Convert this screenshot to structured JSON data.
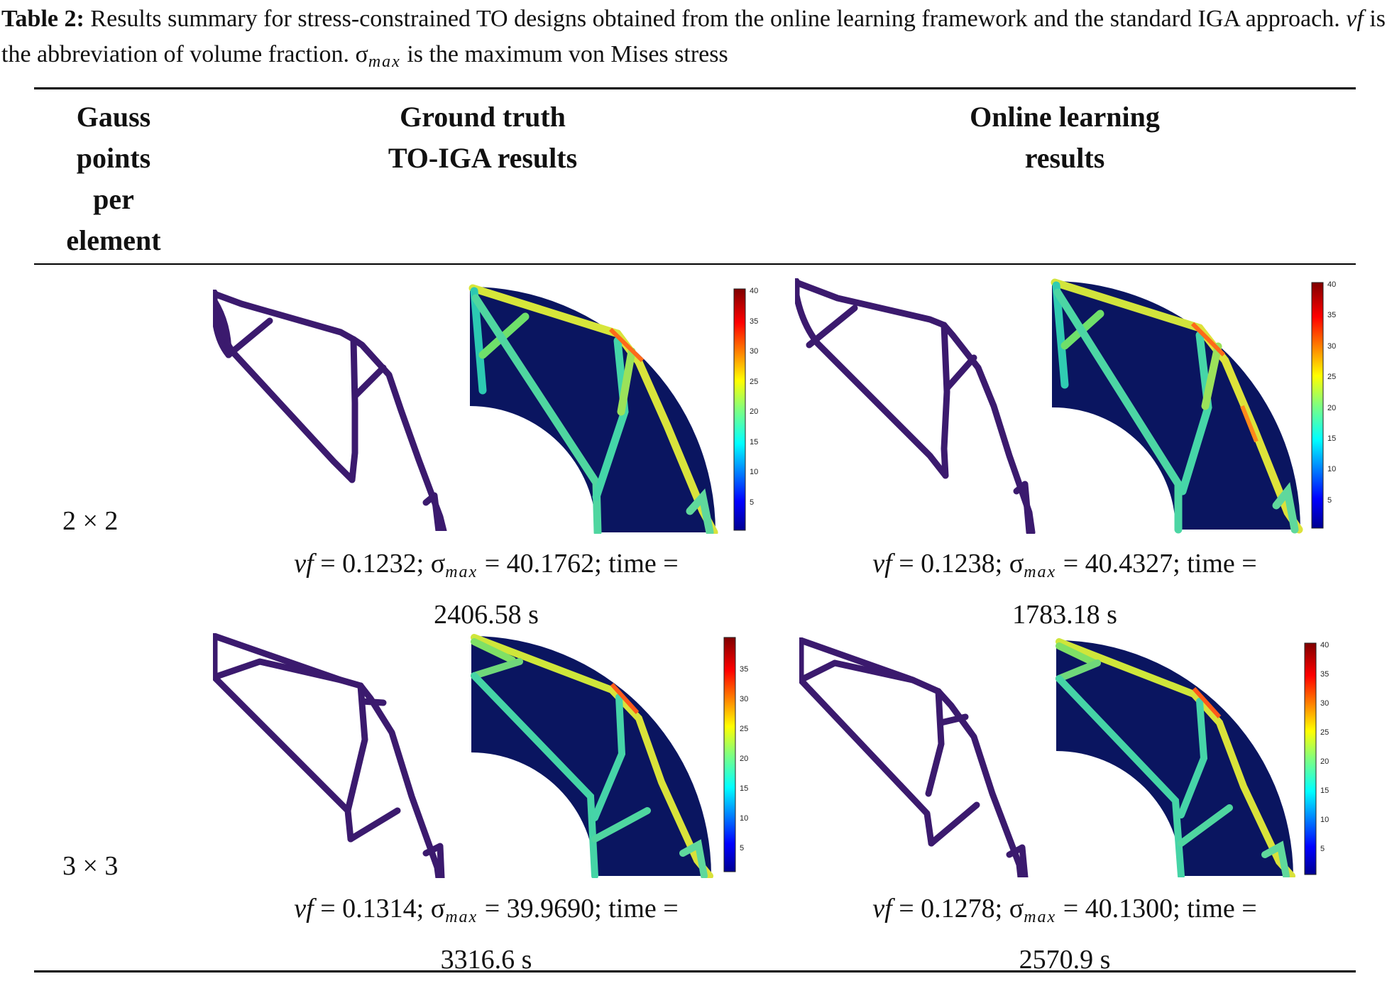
{
  "caption": {
    "label": "Table 2:",
    "text1": "Results summary for stress-constrained TO designs obtained from the online learning framework and the standard IGA approach.",
    "vf_symbol": "vf",
    "text2": "is the abbreviation of volume fraction.",
    "sigma_symbol": "σ",
    "sigma_sub": "max",
    "text3": "is the maximum von Mises stress"
  },
  "headers": {
    "col1": [
      "Gauss",
      "points",
      "per",
      "element"
    ],
    "col2": [
      "Ground truth",
      "TO-IGA results"
    ],
    "col3": [
      "Online learning",
      "results"
    ]
  },
  "rows": [
    {
      "label": "2 × 2",
      "ground_truth": {
        "vf": "0.1232",
        "sigma": "40.1762",
        "time": "2406.58 s"
      },
      "online": {
        "vf": "0.1238",
        "sigma": "40.4327",
        "time": "1783.18 s"
      },
      "gt_colorbar_ticks": [
        "40",
        "35",
        "30",
        "25",
        "20",
        "15",
        "10",
        "5"
      ],
      "ol_colorbar_ticks": [
        "40",
        "35",
        "30",
        "25",
        "20",
        "15",
        "10",
        "5"
      ]
    },
    {
      "label": "3 × 3",
      "ground_truth": {
        "vf": "0.1314",
        "sigma": "39.9690",
        "time": "3316.6 s"
      },
      "online": {
        "vf": "0.1278",
        "sigma": "40.1300",
        "time": "2570.9 s"
      },
      "gt_colorbar_ticks": [
        "35",
        "30",
        "25",
        "20",
        "15",
        "10",
        "5"
      ],
      "ol_colorbar_ticks": [
        "40",
        "35",
        "30",
        "25",
        "20",
        "15",
        "10",
        "5"
      ]
    }
  ],
  "labels": {
    "time_word": "time",
    "eq": "="
  },
  "colors": {
    "structure": "#3b1a6e",
    "field_bg": "#0a1560",
    "rule": "#000000"
  }
}
